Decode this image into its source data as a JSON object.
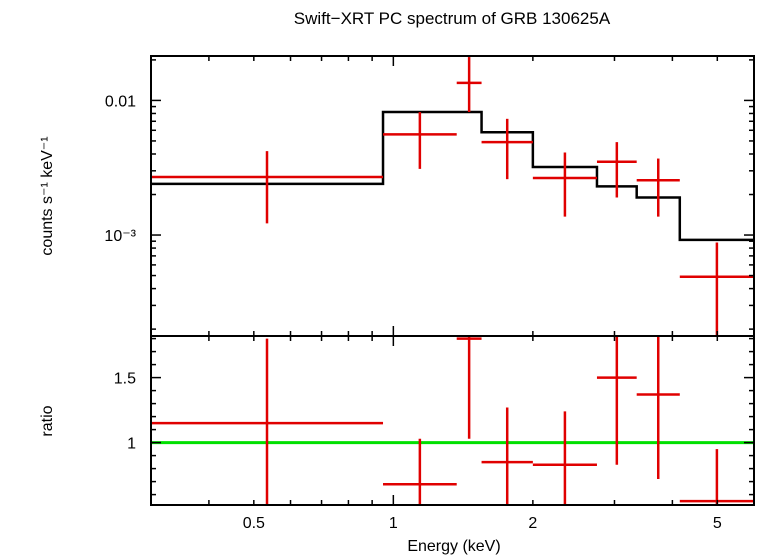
{
  "chart_data": {
    "title": "Swift−XRT PC spectrum of GRB 130625A",
    "xlabel": "Energy (keV)",
    "x_scale": "log",
    "xlim": [
      0.3,
      6.0
    ],
    "x_ticks": [
      {
        "value": 0.5,
        "label": "0.5"
      },
      {
        "value": 1,
        "label": "1"
      },
      {
        "value": 2,
        "label": "2"
      },
      {
        "value": 5,
        "label": "5"
      }
    ],
    "panels": [
      {
        "name": "spectrum",
        "type": "scatter",
        "ylabel": "counts s⁻¹ keV⁻¹",
        "y_scale": "log",
        "ylim": [
          0.0001778,
          0.02138
        ],
        "y_ticks": [
          {
            "value": 0.01,
            "label": "0.01"
          },
          {
            "value": 0.001,
            "label": "10⁻³"
          }
        ],
        "data_color": "#e00000",
        "model_color": "#000000",
        "data": [
          {
            "x_lo": 0.3,
            "x_hi": 0.95,
            "y": 0.0027,
            "y_lo": 0.00122,
            "y_hi": 0.0042
          },
          {
            "x_lo": 0.95,
            "x_hi": 1.37,
            "y": 0.0056,
            "y_lo": 0.0031,
            "y_hi": 0.0082
          },
          {
            "x_lo": 1.37,
            "x_hi": 1.55,
            "y": 0.0135,
            "y_lo": 0.0082,
            "y_hi": 0.021
          },
          {
            "x_lo": 1.55,
            "x_hi": 2.0,
            "y": 0.0049,
            "y_lo": 0.0026,
            "y_hi": 0.0073
          },
          {
            "x_lo": 2.0,
            "x_hi": 2.75,
            "y": 0.00265,
            "y_lo": 0.00137,
            "y_hi": 0.0041
          },
          {
            "x_lo": 2.75,
            "x_hi": 3.35,
            "y": 0.0035,
            "y_lo": 0.0019,
            "y_hi": 0.0049
          },
          {
            "x_lo": 3.35,
            "x_hi": 4.15,
            "y": 0.00255,
            "y_lo": 0.00137,
            "y_hi": 0.0037
          },
          {
            "x_lo": 4.15,
            "x_hi": 6.0,
            "y": 0.00049,
            "y_lo": 0.0001778,
            "y_hi": 0.00088
          }
        ],
        "model_steps": [
          {
            "x_lo": 0.3,
            "x_hi": 0.95,
            "y": 0.0024
          },
          {
            "x_lo": 0.95,
            "x_hi": 1.55,
            "y": 0.0082
          },
          {
            "x_lo": 1.55,
            "x_hi": 2.0,
            "y": 0.0058
          },
          {
            "x_lo": 2.0,
            "x_hi": 2.75,
            "y": 0.0032
          },
          {
            "x_lo": 2.75,
            "x_hi": 3.35,
            "y": 0.0023
          },
          {
            "x_lo": 3.35,
            "x_hi": 4.15,
            "y": 0.0019
          },
          {
            "x_lo": 4.15,
            "x_hi": 6.0,
            "y": 0.00092
          }
        ]
      },
      {
        "name": "ratio",
        "type": "scatter",
        "ylabel": "ratio",
        "y_scale": "linear",
        "ylim": [
          0.52,
          1.82
        ],
        "y_ticks": [
          {
            "value": 1,
            "label": "1"
          },
          {
            "value": 1.5,
            "label": "1.5"
          }
        ],
        "data_color": "#e00000",
        "reference_line": {
          "y": 1.0,
          "color": "#00e000"
        },
        "data": [
          {
            "x_lo": 0.3,
            "x_hi": 0.95,
            "y": 1.15,
            "y_lo": 0.52,
            "y_hi": 1.8
          },
          {
            "x_lo": 0.95,
            "x_hi": 1.37,
            "y": 0.68,
            "y_lo": 0.52,
            "y_hi": 1.03
          },
          {
            "x_lo": 1.37,
            "x_hi": 1.55,
            "y": 1.8,
            "y_lo": 1.03,
            "y_hi": 1.82
          },
          {
            "x_lo": 1.55,
            "x_hi": 2.0,
            "y": 0.85,
            "y_lo": 0.52,
            "y_hi": 1.27
          },
          {
            "x_lo": 2.0,
            "x_hi": 2.75,
            "y": 0.83,
            "y_lo": 0.52,
            "y_hi": 1.24
          },
          {
            "x_lo": 2.75,
            "x_hi": 3.35,
            "y": 1.5,
            "y_lo": 0.83,
            "y_hi": 1.82
          },
          {
            "x_lo": 3.35,
            "x_hi": 4.15,
            "y": 1.37,
            "y_lo": 0.72,
            "y_hi": 1.82
          },
          {
            "x_lo": 4.15,
            "x_hi": 6.0,
            "y": 0.55,
            "y_lo": 0.52,
            "y_hi": 0.95
          }
        ]
      }
    ]
  }
}
